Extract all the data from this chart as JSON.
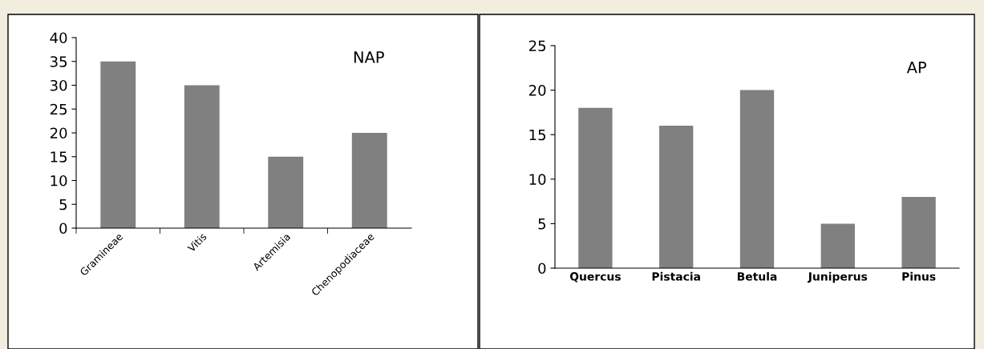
{
  "chart_data": [
    {
      "type": "bar",
      "title": "NAP",
      "categories": [
        "Gramineae",
        "Vitis",
        "Artemisia",
        "Chenopodiaceae"
      ],
      "values": [
        35,
        30,
        15,
        20
      ],
      "color": "#808080",
      "ylim": [
        0,
        40
      ],
      "yticks": [
        0,
        5,
        10,
        15,
        20,
        25,
        30,
        35,
        40
      ],
      "grid": false
    },
    {
      "type": "bar",
      "title": "AP",
      "categories": [
        "Quercus",
        "Pistacia",
        "Betula",
        "Juniperus",
        "Pinus"
      ],
      "values": [
        18,
        16,
        20,
        5,
        8
      ],
      "color": "#808080",
      "ylim": [
        0,
        25
      ],
      "yticks": [
        0,
        5,
        10,
        15,
        20,
        25
      ],
      "grid": false
    }
  ]
}
